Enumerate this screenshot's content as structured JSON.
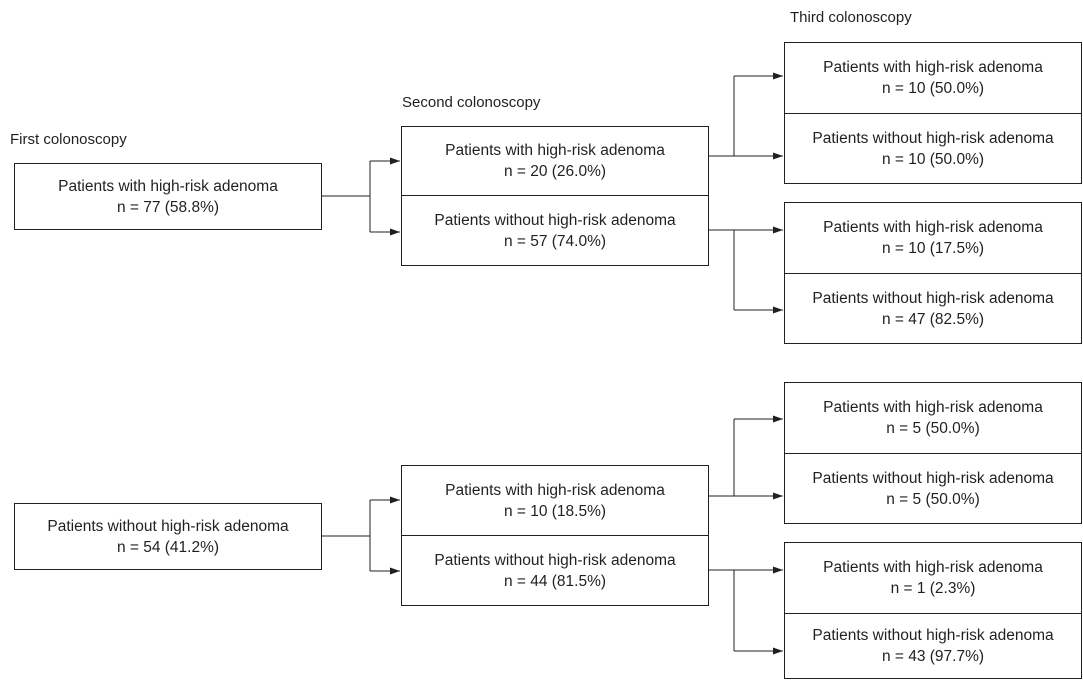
{
  "columns": {
    "first": "First colonoscopy",
    "second": "Second colonoscopy",
    "third": "Third colonoscopy"
  },
  "groups": [
    {
      "root": {
        "label": "Patients with high-risk adenoma",
        "count": "n = 77 (58.8%)"
      },
      "second": [
        {
          "label": "Patients with high-risk adenoma",
          "count": "n = 20 (26.0%)",
          "third": [
            {
              "label": "Patients with high-risk adenoma",
              "count": "n = 10 (50.0%)"
            },
            {
              "label": "Patients without high-risk adenoma",
              "count": "n = 10 (50.0%)"
            }
          ]
        },
        {
          "label": "Patients without high-risk adenoma",
          "count": "n = 57 (74.0%)",
          "third": [
            {
              "label": "Patients with high-risk adenoma",
              "count": "n = 10 (17.5%)"
            },
            {
              "label": "Patients without high-risk adenoma",
              "count": "n = 47 (82.5%)"
            }
          ]
        }
      ]
    },
    {
      "root": {
        "label": "Patients without high-risk adenoma",
        "count": "n = 54 (41.2%)"
      },
      "second": [
        {
          "label": "Patients with high-risk adenoma",
          "count": "n = 10 (18.5%)",
          "third": [
            {
              "label": "Patients with high-risk adenoma",
              "count": "n = 5 (50.0%)"
            },
            {
              "label": "Patients without high-risk adenoma",
              "count": "n = 5 (50.0%)"
            }
          ]
        },
        {
          "label": "Patients without high-risk adenoma",
          "count": "n = 44 (81.5%)",
          "third": [
            {
              "label": "Patients with high-risk adenoma",
              "count": "n = 1 (2.3%)"
            },
            {
              "label": "Patients without high-risk adenoma",
              "count": "n = 43 (97.7%)"
            }
          ]
        }
      ]
    }
  ]
}
